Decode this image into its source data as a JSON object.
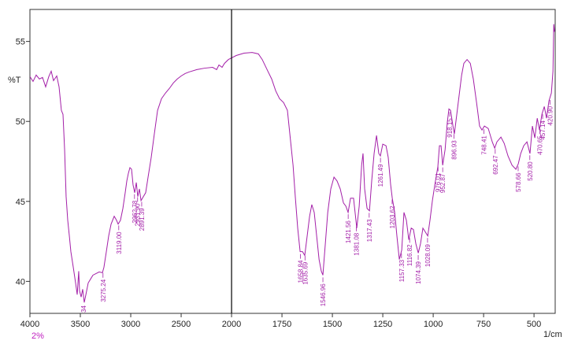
{
  "chart_data": {
    "type": "line",
    "color": "#a31fa8",
    "y_label": "%T",
    "x_label": "1/cm",
    "scale_note": "2%",
    "xlim": [
      4000,
      395
    ],
    "x_break": 2000,
    "ylim": [
      38,
      57
    ],
    "xticks": [
      4000,
      3500,
      3000,
      2500,
      2000,
      1750,
      1500,
      1250,
      1000,
      750,
      500
    ],
    "yticks": [
      40,
      45,
      50,
      55
    ],
    "x": [
      4000,
      3969,
      3938,
      3906,
      3875,
      3844,
      3813,
      3789,
      3766,
      3734,
      3711,
      3688,
      3672,
      3656,
      3641,
      3625,
      3609,
      3594,
      3570,
      3547,
      3531,
      3516,
      3508,
      3492,
      3477,
      3461,
      3445,
      3422,
      3398,
      3375,
      3344,
      3313,
      3281,
      3266,
      3242,
      3219,
      3195,
      3164,
      3141,
      3125,
      3102,
      3078,
      3055,
      3039,
      3023,
      3008,
      2992,
      2977,
      2961,
      2945,
      2930,
      2914,
      2898,
      2875,
      2852,
      2828,
      2797,
      2766,
      2734,
      2695,
      2656,
      2617,
      2578,
      2539,
      2500,
      2461,
      2422,
      2344,
      2266,
      2188,
      2148,
      2125,
      2094,
      2070,
      2031,
      2000,
      1977,
      1938,
      1898,
      1867,
      1848,
      1820,
      1801,
      1781,
      1762,
      1742,
      1723,
      1711,
      1695,
      1684,
      1672,
      1660,
      1648,
      1637,
      1625,
      1613,
      1602,
      1590,
      1578,
      1566,
      1555,
      1547,
      1535,
      1523,
      1508,
      1492,
      1477,
      1461,
      1445,
      1433,
      1422,
      1410,
      1395,
      1379,
      1367,
      1355,
      1348,
      1340,
      1328,
      1316,
      1305,
      1293,
      1281,
      1270,
      1262,
      1250,
      1234,
      1223,
      1211,
      1203,
      1191,
      1180,
      1168,
      1156,
      1145,
      1133,
      1121,
      1109,
      1098,
      1086,
      1074,
      1063,
      1051,
      1039,
      1027,
      1016,
      1004,
      992,
      977,
      969,
      961,
      953,
      941,
      930,
      922,
      914,
      902,
      895,
      883,
      871,
      859,
      848,
      832,
      816,
      801,
      785,
      770,
      758,
      746,
      727,
      707,
      695,
      684,
      664,
      648,
      629,
      609,
      590,
      578,
      566,
      551,
      535,
      520,
      508,
      496,
      484,
      473,
      461,
      449,
      438,
      426,
      414,
      406,
      402,
      398
    ],
    "values": [
      52.8,
      52.5,
      52.9,
      52.65,
      52.75,
      52.16,
      52.8,
      53.14,
      52.55,
      52.84,
      52.16,
      50.69,
      50.44,
      48.24,
      45.3,
      43.82,
      42.84,
      41.86,
      40.88,
      39.9,
      39.17,
      40.64,
      39.41,
      39.02,
      39.51,
      38.68,
      39.17,
      39.9,
      40.15,
      40.39,
      40.49,
      40.59,
      40.54,
      40.88,
      41.86,
      42.84,
      43.58,
      44.07,
      43.82,
      43.58,
      43.82,
      44.56,
      45.54,
      46.28,
      46.77,
      47.11,
      47.01,
      46.03,
      45.54,
      46.18,
      45.3,
      45.78,
      45.05,
      45.3,
      45.54,
      46.52,
      47.75,
      49.22,
      50.69,
      51.42,
      51.77,
      52.06,
      52.4,
      52.65,
      52.84,
      52.99,
      53.09,
      53.24,
      53.33,
      53.38,
      53.24,
      53.53,
      53.38,
      53.63,
      53.87,
      53.97,
      54.12,
      54.27,
      54.31,
      54.22,
      53.87,
      53.14,
      52.65,
      51.91,
      51.42,
      51.18,
      50.69,
      49.22,
      47.26,
      45.3,
      43.33,
      41.86,
      41.86,
      41.62,
      42.84,
      44.07,
      44.8,
      44.31,
      42.84,
      41.37,
      40.64,
      40.39,
      42.35,
      44.31,
      45.78,
      46.52,
      46.28,
      45.78,
      44.9,
      44.7,
      44.31,
      45.2,
      45.2,
      43.33,
      44.7,
      47.26,
      48.0,
      45.78,
      44.56,
      44.41,
      46.28,
      48.0,
      49.12,
      48.0,
      47.84,
      48.58,
      48.48,
      47.75,
      46.03,
      45.2,
      44.31,
      42.84,
      41.37,
      41.96,
      44.31,
      43.82,
      42.6,
      43.33,
      43.24,
      42.35,
      41.77,
      42.35,
      43.33,
      43.09,
      42.84,
      43.82,
      45.05,
      46.03,
      47.16,
      48.48,
      48.48,
      47.26,
      48.24,
      49.95,
      50.78,
      50.69,
      49.71,
      49.22,
      50.44,
      51.67,
      52.89,
      53.63,
      53.87,
      53.63,
      52.65,
      51.18,
      49.71,
      49.46,
      49.71,
      49.56,
      48.72,
      48.33,
      48.72,
      49.02,
      48.63,
      47.84,
      47.26,
      47.01,
      47.35,
      47.99,
      48.48,
      48.72,
      47.99,
      49.71,
      48.97,
      50.2,
      49.46,
      50.44,
      50.93,
      50.2,
      51.28,
      51.77,
      53.14,
      56.08,
      55.6
    ],
    "peak_labels": [
      {
        "value": 3275.24,
        "label": "3275.24"
      },
      {
        "value": 3119.0,
        "label": "3119.00"
      },
      {
        "value": 2962.78,
        "label": "2962.78"
      },
      {
        "value": 2931.9,
        "label": "2931.90"
      },
      {
        "value": 2891.39,
        "label": "2891.39"
      },
      {
        "value": 1658.84,
        "label": "1658.84"
      },
      {
        "value": 1635.69,
        "label": "1635.69"
      },
      {
        "value": 1546.96,
        "label": "1546.96"
      },
      {
        "value": 1421.56,
        "label": "1421.56"
      },
      {
        "value": 1381.08,
        "label": "1381.08"
      },
      {
        "value": 1317.43,
        "label": "1317.43"
      },
      {
        "value": 1261.49,
        "label": "1261.49"
      },
      {
        "value": 1203.62,
        "label": "1203.62"
      },
      {
        "value": 1157.33,
        "label": "1157.33"
      },
      {
        "value": 1116.82,
        "label": "1116.82"
      },
      {
        "value": 1074.39,
        "label": "1074.39"
      },
      {
        "value": 1028.09,
        "label": "1028.09"
      },
      {
        "value": 976.01,
        "label": "976.01"
      },
      {
        "value": 952.87,
        "label": "952.87"
      },
      {
        "value": 918.15,
        "label": "918.15"
      },
      {
        "value": 896.93,
        "label": "896.93"
      },
      {
        "value": 748.41,
        "label": "748.41"
      },
      {
        "value": 692.47,
        "label": "692.47"
      },
      {
        "value": 578.66,
        "label": "578.66"
      },
      {
        "value": 520.8,
        "label": "520.80"
      },
      {
        "value": 470.65,
        "label": "470.65"
      },
      {
        "value": 457.14,
        "label": "457.14"
      },
      {
        "value": 420.9,
        "label": "420.90"
      }
    ],
    "clipped_label": "34"
  }
}
